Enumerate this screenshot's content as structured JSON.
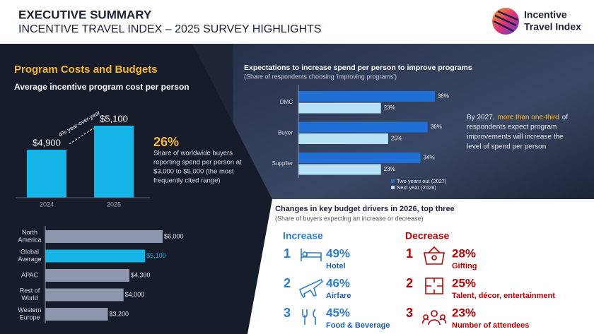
{
  "header": {
    "title": "EXECUTIVE SUMMARY",
    "subtitle": "INCENTIVE TRAVEL INDEX – 2025 SURVEY HIGHLIGHTS",
    "logo_lines": [
      "Incentive",
      "Travel Index"
    ]
  },
  "section_title": "Program Costs and Budgets",
  "stat": {
    "value": "26%",
    "lines": [
      "Share of worldwide buyers",
      "reporting spend per person at",
      "$3,000 to $5,000 (the most",
      "frequently cited range)"
    ]
  },
  "callout": {
    "line1": [
      "By 2027,",
      "more than one-third",
      "of"
    ],
    "lines": [
      "respondents expect program",
      "improvements will increase the",
      "level of spend per person"
    ]
  },
  "chart_data": [
    {
      "type": "bar",
      "title": "Average incentive program cost per person",
      "categories": [
        "2024",
        "2025"
      ],
      "values": [
        4900,
        5100
      ],
      "value_labels": [
        "$4,900",
        "$5,100"
      ],
      "color": "#14b4e6",
      "ylim": [
        4500,
        5200
      ],
      "annotation": "4% year-over-year"
    },
    {
      "type": "hbar",
      "categories": [
        "North America",
        "Global Average",
        "APAC",
        "Rest of World",
        "Western Europe"
      ],
      "values": [
        6000,
        5100,
        4300,
        4000,
        3200
      ],
      "value_labels": [
        "$6,000",
        "$5,100",
        "$4,300",
        "$4,000",
        "$3,200"
      ],
      "colors": [
        "#8d98ae",
        "#14b4e6",
        "#8d98ae",
        "#8d98ae",
        "#8d98ae"
      ],
      "xlim": [
        0,
        6000
      ]
    },
    {
      "type": "grouped-hbar",
      "title": "Expectations to increase spend per person to improve programs",
      "subtitle": "(Share of respondents choosing 'improving programs')",
      "categories": [
        "DMC",
        "Buyer",
        "Supplier"
      ],
      "series": [
        {
          "name": "Two years out (2027)",
          "color": "#1f6fd6",
          "values": [
            38,
            36,
            34
          ],
          "value_labels": [
            "38%",
            "36%",
            "34%"
          ]
        },
        {
          "name": "Next year (2026)",
          "color": "#b7e2f6",
          "values": [
            23,
            25,
            23
          ],
          "value_labels": [
            "23%",
            "25%",
            "23%"
          ]
        }
      ],
      "xlim": [
        0,
        40
      ]
    }
  ],
  "drivers": {
    "title": "Changes in key budget drivers in 2026, top three",
    "subtitle": "(Share of buyers expecting an increase or decrease)",
    "increase": {
      "heading": "Increase",
      "items": [
        {
          "rank": "1",
          "value": "49%",
          "label": "Hotel"
        },
        {
          "rank": "2",
          "value": "46%",
          "label": "Airfare"
        },
        {
          "rank": "3",
          "value": "45%",
          "label": "Food & Beverage"
        }
      ]
    },
    "decrease": {
      "heading": "Decrease",
      "items": [
        {
          "rank": "1",
          "value": "28%",
          "label": "Gifting"
        },
        {
          "rank": "2",
          "value": "25%",
          "label": "Talent, décor, entertainment"
        },
        {
          "rank": "3",
          "value": "23%",
          "label": "Number of attendees"
        }
      ]
    }
  }
}
